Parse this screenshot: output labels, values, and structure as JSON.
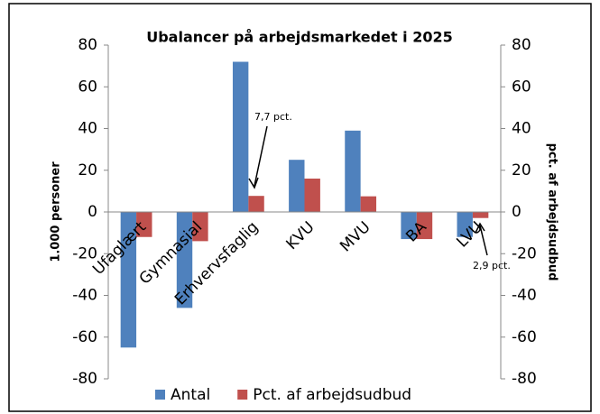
{
  "chart_data": {
    "type": "bar",
    "title": "Ubalancer på arbejdsmarkedet i 2025",
    "y_label": "1.000 personer",
    "y2_label": "pct. af arbejdsudbud",
    "categories": [
      "Ufaglært",
      "Gymnasial",
      "Erhvervsfaglig",
      "KVU",
      "MVU",
      "BA",
      "LVU"
    ],
    "series": [
      {
        "name": "Antal",
        "color": "#4f81bd",
        "values": [
          -65,
          -46,
          72,
          25,
          39,
          -13,
          -12
        ]
      },
      {
        "name": "Pct. af arbejdsudbud",
        "color": "#c0504d",
        "axis": "y2",
        "values": [
          -12,
          -14,
          7.7,
          16,
          7.5,
          -13,
          -2.9
        ]
      }
    ],
    "ylim": [
      -80,
      80
    ],
    "yticks": [
      -80,
      -60,
      -40,
      -20,
      0,
      20,
      40,
      60,
      80
    ],
    "y2lim": [
      -80,
      80
    ],
    "y2ticks": [
      -80,
      -60,
      -40,
      -20,
      0,
      20,
      40,
      60,
      80
    ],
    "annotations": [
      "7,7 pct.",
      "2,9 pct."
    ],
    "legend": "bottom"
  }
}
